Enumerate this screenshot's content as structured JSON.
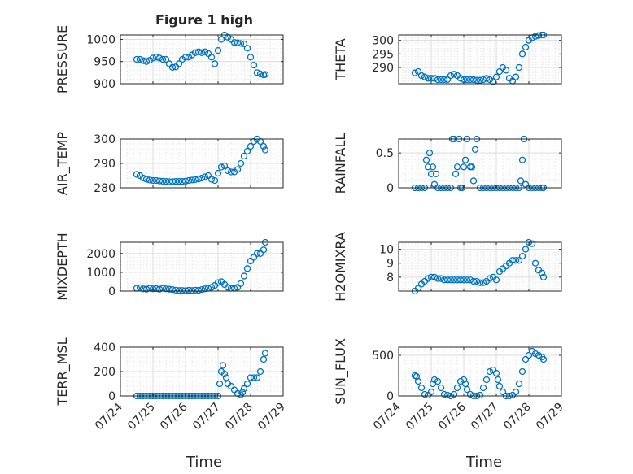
{
  "title": "Figure 1 high",
  "xlabel": "Time",
  "x_tick_labels": [
    "07/24",
    "07/25",
    "07/26",
    "07/27",
    "07/28",
    "07/29"
  ],
  "marker_color": "#0072BD",
  "chart_data": [
    {
      "type": "scatter",
      "ylabel": "PRESSURE",
      "ylim": [
        900,
        1010
      ],
      "yticks": [
        900,
        950,
        1000
      ],
      "xlim": [
        0,
        5
      ],
      "grid": true,
      "minor_grid": true,
      "x": [
        0.5,
        0.6,
        0.7,
        0.8,
        0.9,
        1.0,
        1.1,
        1.2,
        1.3,
        1.4,
        1.5,
        1.6,
        1.7,
        1.8,
        1.9,
        2.0,
        2.1,
        2.2,
        2.3,
        2.4,
        2.5,
        2.6,
        2.7,
        2.8,
        2.9,
        3.0,
        3.1,
        3.2,
        3.3,
        3.4,
        3.5,
        3.6,
        3.7,
        3.8,
        3.9,
        4.0,
        4.1,
        4.2,
        4.3,
        4.4,
        4.45
      ],
      "y": [
        955,
        955,
        952,
        950,
        953,
        958,
        960,
        958,
        955,
        955,
        945,
        937,
        938,
        945,
        955,
        960,
        960,
        965,
        970,
        972,
        970,
        972,
        968,
        960,
        945,
        975,
        1000,
        1010,
        1005,
        1000,
        993,
        992,
        991,
        990,
        980,
        960,
        942,
        925,
        922,
        920,
        921
      ]
    },
    {
      "type": "scatter",
      "ylabel": "THETA",
      "ylim": [
        284,
        302
      ],
      "yticks": [
        290,
        295,
        300
      ],
      "xlim": [
        0,
        5
      ],
      "grid": true,
      "minor_grid": true,
      "x": [
        0.5,
        0.6,
        0.7,
        0.8,
        0.9,
        1.0,
        1.1,
        1.2,
        1.3,
        1.4,
        1.5,
        1.6,
        1.7,
        1.8,
        1.9,
        2.0,
        2.1,
        2.2,
        2.3,
        2.4,
        2.5,
        2.6,
        2.7,
        2.8,
        2.9,
        3.0,
        3.1,
        3.2,
        3.3,
        3.4,
        3.5,
        3.6,
        3.7,
        3.8,
        3.9,
        4.0,
        4.1,
        4.2,
        4.3,
        4.4,
        4.45
      ],
      "y": [
        288,
        288.5,
        287,
        286.5,
        286,
        286,
        286,
        285.5,
        285.5,
        285.5,
        285.5,
        287,
        287.5,
        287,
        286,
        285.5,
        285.5,
        285.5,
        285.5,
        285.3,
        285.3,
        285.5,
        286,
        285.5,
        284.8,
        286.5,
        288.5,
        290,
        289,
        286,
        285,
        286.5,
        290,
        295,
        297.5,
        300,
        301,
        301.5,
        301.8,
        302,
        302
      ]
    },
    {
      "type": "scatter",
      "ylabel": "AIR_TEMP",
      "ylim": [
        280,
        300
      ],
      "yticks": [
        280,
        290,
        300
      ],
      "xlim": [
        0,
        5
      ],
      "grid": true,
      "minor_grid": true,
      "x": [
        0.5,
        0.6,
        0.7,
        0.8,
        0.9,
        1.0,
        1.1,
        1.2,
        1.3,
        1.4,
        1.5,
        1.6,
        1.7,
        1.8,
        1.9,
        2.0,
        2.1,
        2.2,
        2.3,
        2.4,
        2.5,
        2.6,
        2.7,
        2.8,
        2.9,
        3.0,
        3.1,
        3.2,
        3.3,
        3.4,
        3.5,
        3.6,
        3.7,
        3.8,
        3.9,
        4.0,
        4.1,
        4.2,
        4.3,
        4.4,
        4.45
      ],
      "y": [
        285.5,
        285,
        284,
        283.5,
        283.2,
        283,
        283,
        282.8,
        282.7,
        282.6,
        282.5,
        282.5,
        282.6,
        282.6,
        282.6,
        282.7,
        283,
        283.2,
        283.4,
        283.6,
        284,
        284.5,
        285,
        283.5,
        283,
        286,
        288.5,
        289,
        287,
        286.5,
        286.5,
        287.5,
        290,
        293,
        295,
        297,
        299,
        300,
        299,
        297,
        295.5
      ]
    },
    {
      "type": "scatter",
      "ylabel": "RAINFALL",
      "ylim": [
        0,
        0.7
      ],
      "yticks": [
        0,
        0.5
      ],
      "xlim": [
        0,
        5
      ],
      "grid": true,
      "minor_grid": true,
      "x": [
        0.5,
        0.6,
        0.7,
        0.8,
        0.85,
        0.9,
        0.95,
        1.0,
        1.05,
        1.1,
        1.15,
        1.2,
        1.3,
        1.4,
        1.5,
        1.6,
        1.65,
        1.7,
        1.75,
        1.8,
        1.85,
        1.9,
        1.95,
        2.0,
        2.05,
        2.1,
        2.2,
        2.25,
        2.3,
        2.35,
        2.4,
        2.5,
        2.6,
        2.7,
        2.8,
        2.9,
        3.0,
        3.1,
        3.2,
        3.3,
        3.4,
        3.5,
        3.6,
        3.7,
        3.75,
        3.8,
        3.85,
        3.9,
        4.0,
        4.1,
        4.2,
        4.3,
        4.4,
        4.45
      ],
      "y": [
        0,
        0,
        0,
        0,
        0.4,
        0.3,
        0.5,
        0.2,
        0.3,
        0.05,
        0.2,
        0,
        0,
        0,
        0,
        0,
        0.7,
        0.7,
        0.2,
        0.3,
        0.7,
        0,
        0,
        0.3,
        0.4,
        0.7,
        0.3,
        0.3,
        0.1,
        0.55,
        0.7,
        0,
        0,
        0,
        0,
        0,
        0,
        0,
        0,
        0,
        0,
        0,
        0,
        0,
        0.1,
        0.4,
        0.7,
        0.05,
        0,
        0,
        0,
        0,
        0,
        0
      ]
    },
    {
      "type": "scatter",
      "ylabel": "MIXDEPTH",
      "ylim": [
        0,
        2600
      ],
      "yticks": [
        0,
        1000,
        2000
      ],
      "xlim": [
        0,
        5
      ],
      "grid": true,
      "minor_grid": true,
      "x": [
        0.5,
        0.6,
        0.7,
        0.8,
        0.9,
        1.0,
        1.1,
        1.2,
        1.3,
        1.4,
        1.5,
        1.6,
        1.7,
        1.8,
        1.9,
        2.0,
        2.1,
        2.2,
        2.3,
        2.4,
        2.5,
        2.6,
        2.7,
        2.8,
        2.9,
        3.0,
        3.1,
        3.2,
        3.3,
        3.4,
        3.5,
        3.6,
        3.7,
        3.8,
        3.9,
        4.0,
        4.1,
        4.2,
        4.3,
        4.4,
        4.45
      ],
      "y": [
        150,
        180,
        120,
        100,
        150,
        120,
        130,
        100,
        150,
        120,
        100,
        80,
        50,
        30,
        30,
        20,
        40,
        30,
        50,
        40,
        80,
        120,
        150,
        200,
        300,
        450,
        500,
        350,
        200,
        150,
        150,
        200,
        400,
        800,
        1200,
        1600,
        1800,
        2000,
        2000,
        2200,
        2600
      ]
    },
    {
      "type": "scatter",
      "ylabel": "H2OMIXRA",
      "ylim": [
        7,
        10.5
      ],
      "yticks": [
        8,
        9,
        10
      ],
      "xlim": [
        0,
        5
      ],
      "grid": true,
      "minor_grid": true,
      "x": [
        0.5,
        0.6,
        0.7,
        0.8,
        0.9,
        1.0,
        1.1,
        1.2,
        1.3,
        1.4,
        1.5,
        1.6,
        1.7,
        1.8,
        1.9,
        2.0,
        2.1,
        2.2,
        2.3,
        2.4,
        2.5,
        2.6,
        2.7,
        2.8,
        2.9,
        3.0,
        3.1,
        3.2,
        3.3,
        3.4,
        3.5,
        3.6,
        3.7,
        3.8,
        3.9,
        4.0,
        4.1,
        4.2,
        4.3,
        4.4,
        4.45
      ],
      "y": [
        7,
        7.2,
        7.5,
        7.7,
        7.9,
        8,
        8,
        7.9,
        7.9,
        7.8,
        7.8,
        7.8,
        7.8,
        7.8,
        7.8,
        7.8,
        7.8,
        7.8,
        7.7,
        7.7,
        7.6,
        7.6,
        7.7,
        7.9,
        8,
        7.8,
        8.4,
        8.6,
        8.8,
        9,
        9.2,
        9.2,
        9.2,
        9.5,
        10,
        10.5,
        10.4,
        9,
        8.5,
        8.3,
        8
      ]
    },
    {
      "type": "scatter",
      "ylabel": "TERR_MSL",
      "ylim": [
        0,
        400
      ],
      "yticks": [
        0,
        200,
        400
      ],
      "xlim": [
        0,
        5
      ],
      "grid": true,
      "minor_grid": true,
      "x": [
        0.5,
        0.6,
        0.7,
        0.8,
        0.9,
        1.0,
        1.1,
        1.2,
        1.3,
        1.4,
        1.5,
        1.6,
        1.7,
        1.8,
        1.9,
        2.0,
        2.1,
        2.2,
        2.3,
        2.4,
        2.5,
        2.6,
        2.7,
        2.8,
        2.9,
        3.0,
        3.05,
        3.1,
        3.15,
        3.2,
        3.25,
        3.3,
        3.4,
        3.5,
        3.6,
        3.7,
        3.75,
        3.8,
        3.9,
        4.0,
        4.1,
        4.2,
        4.3,
        4.4,
        4.45
      ],
      "y": [
        0,
        0,
        0,
        0,
        0,
        0,
        0,
        0,
        0,
        0,
        0,
        0,
        0,
        0,
        0,
        0,
        0,
        0,
        0,
        0,
        0,
        0,
        0,
        0,
        0,
        0,
        100,
        200,
        250,
        180,
        150,
        100,
        80,
        50,
        20,
        10,
        30,
        60,
        100,
        150,
        150,
        150,
        200,
        300,
        350
      ]
    },
    {
      "type": "scatter",
      "ylabel": "SUN_FLUX",
      "ylim": [
        0,
        600
      ],
      "yticks": [
        0,
        500
      ],
      "xlim": [
        0,
        5
      ],
      "grid": true,
      "minor_grid": true,
      "x": [
        0.5,
        0.55,
        0.6,
        0.7,
        0.8,
        0.9,
        1.0,
        1.05,
        1.1,
        1.2,
        1.3,
        1.4,
        1.5,
        1.6,
        1.7,
        1.8,
        1.9,
        2.0,
        2.05,
        2.1,
        2.2,
        2.3,
        2.4,
        2.5,
        2.6,
        2.7,
        2.8,
        2.9,
        3.0,
        3.05,
        3.1,
        3.2,
        3.3,
        3.4,
        3.5,
        3.6,
        3.7,
        3.8,
        3.9,
        4.0,
        4.1,
        4.2,
        4.3,
        4.4,
        4.45
      ],
      "y": [
        250,
        240,
        180,
        100,
        20,
        10,
        50,
        150,
        200,
        180,
        100,
        20,
        10,
        0,
        20,
        100,
        180,
        200,
        150,
        80,
        20,
        0,
        0,
        10,
        100,
        200,
        300,
        320,
        280,
        200,
        120,
        50,
        0,
        0,
        10,
        50,
        150,
        300,
        450,
        500,
        550,
        520,
        500,
        480,
        450
      ]
    }
  ]
}
